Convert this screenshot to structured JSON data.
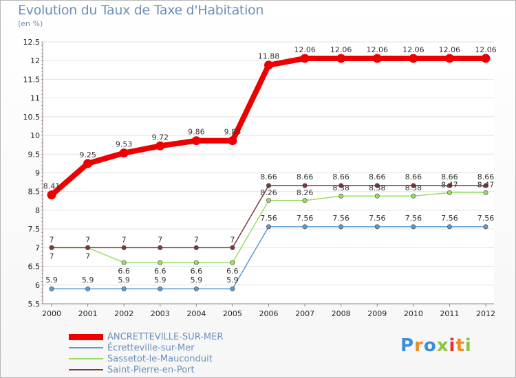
{
  "title": "Evolution du Taux de Taxe d'Habitation",
  "subtitle": "(en %)",
  "logo_text": "Proxiti",
  "colors": {
    "title": "#6d8fb8",
    "series": [
      "#ee0000",
      "#5b9ad0",
      "#99dd66",
      "#7a3b3b"
    ],
    "logo": [
      "#3a8fd8",
      "#f08a24",
      "#3a8fd8",
      "#8cc63f",
      "#e03030",
      "#f08a24",
      "#8cc63f"
    ]
  },
  "chart_data": {
    "type": "line",
    "title": "Evolution du Taux de Taxe d'Habitation",
    "ylabel": "(en %)",
    "xlabel": "",
    "categories": [
      "2000",
      "2001",
      "2002",
      "2003",
      "2004",
      "2005",
      "2006",
      "2007",
      "2008",
      "2009",
      "2010",
      "2011",
      "2012"
    ],
    "ylim": [
      5.5,
      12.5
    ],
    "yticks": [
      "5.5",
      "6",
      "6.5",
      "7",
      "7.5",
      "8",
      "8.5",
      "9",
      "9.5",
      "10",
      "10.5",
      "11",
      "11.5",
      "12",
      "12.5"
    ],
    "grid": "horizontal",
    "legend": "bottom-left",
    "series": [
      {
        "name": "ANCRETTEVILLE-SUR-MER",
        "values": [
          8.41,
          9.25,
          9.53,
          9.72,
          9.86,
          9.86,
          11.88,
          12.06,
          12.06,
          12.06,
          12.06,
          12.06,
          12.06
        ],
        "labels": [
          "8.41",
          "9.25",
          "9.53",
          "9.72",
          "9.86",
          "9.86",
          "11.88",
          "12.06",
          "12.06",
          "12.06",
          "12.06",
          "12.06",
          "12.06"
        ]
      },
      {
        "name": "Écretteville-sur-Mer",
        "values": [
          5.9,
          5.9,
          5.9,
          5.9,
          5.9,
          5.9,
          7.56,
          7.56,
          7.56,
          7.56,
          7.56,
          7.56,
          7.56
        ],
        "labels": [
          "5.9",
          "5.9",
          "5.9",
          "5.9",
          "5.9",
          "5.9",
          "7.56",
          "7.56",
          "7.56",
          "7.56",
          "7.56",
          "7.56",
          "7.56"
        ]
      },
      {
        "name": "Sassetot-le-Mauconduit",
        "values": [
          7,
          7,
          6.6,
          6.6,
          6.6,
          6.6,
          8.26,
          8.26,
          8.38,
          8.38,
          8.38,
          8.47,
          8.47
        ],
        "labels": [
          "7",
          "7",
          "6.6",
          "6.6",
          "6.6",
          "6.6",
          "8.26",
          "8.26",
          "8.38",
          "8.38",
          "8.38",
          "8.47",
          "8.47"
        ]
      },
      {
        "name": "Saint-Pierre-en-Port",
        "values": [
          7,
          7,
          7,
          7,
          7,
          7,
          8.66,
          8.66,
          8.66,
          8.66,
          8.66,
          8.66,
          8.66
        ],
        "labels": [
          "7",
          "7",
          "7",
          "7",
          "7",
          "7",
          "8.66",
          "8.66",
          "8.66",
          "8.66",
          "8.66",
          "8.66",
          "8.66"
        ]
      }
    ]
  }
}
